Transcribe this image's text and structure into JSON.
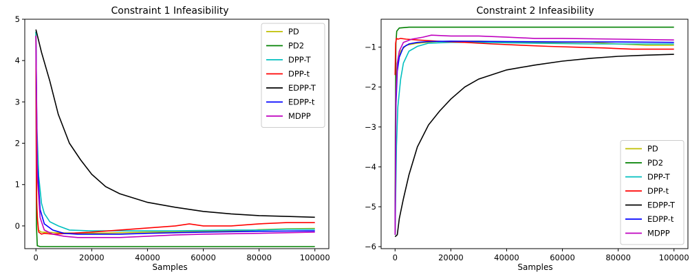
{
  "chart_data": [
    {
      "type": "line",
      "title": "Constraint 1 Infeasibility",
      "xlabel": "Samples",
      "ylabel": "",
      "xlim": [
        -4000,
        105000
      ],
      "ylim": [
        -0.55,
        5.0
      ],
      "xticks": [
        0,
        20000,
        40000,
        60000,
        80000,
        100000
      ],
      "xtick_labels": [
        "0",
        "20000",
        "40000",
        "60000",
        "80000",
        "100000"
      ],
      "yticks": [
        0,
        1,
        2,
        3,
        4,
        5
      ],
      "ytick_labels": [
        "0",
        "1",
        "2",
        "3",
        "4",
        "5"
      ],
      "legend_position": "top-right",
      "series": [
        {
          "name": "PD",
          "color": "#bfbf00",
          "x": [
            0,
            300,
            800,
            2000,
            10000,
            20000,
            40000,
            60000,
            75000,
            80000,
            90000,
            100000
          ],
          "y": [
            4.7,
            0.5,
            -0.1,
            -0.15,
            -0.17,
            -0.18,
            -0.15,
            -0.13,
            -0.12,
            -0.09,
            -0.07,
            -0.06
          ]
        },
        {
          "name": "PD2",
          "color": "#008000",
          "x": [
            0,
            200,
            500,
            1500,
            5000,
            20000,
            100000
          ],
          "y": [
            4.7,
            0.0,
            -0.48,
            -0.5,
            -0.5,
            -0.5,
            -0.5
          ]
        },
        {
          "name": "DPP-T",
          "color": "#00bfbf",
          "x": [
            0,
            300,
            1000,
            2000,
            3000,
            5000,
            8000,
            12000,
            20000,
            30000,
            50000,
            70000,
            80000,
            90000,
            100000
          ],
          "y": [
            4.7,
            2.5,
            1.2,
            0.55,
            0.3,
            0.1,
            0.0,
            -0.1,
            -0.12,
            -0.12,
            -0.12,
            -0.1,
            -0.1,
            -0.08,
            -0.08
          ]
        },
        {
          "name": "DPP-t",
          "color": "#ff0000",
          "x": [
            0,
            200,
            500,
            1000,
            2000,
            3000,
            6000,
            12000,
            20000,
            30000,
            40000,
            50000,
            55000,
            60000,
            70000,
            80000,
            90000,
            100000
          ],
          "y": [
            4.5,
            0.8,
            0.2,
            -0.15,
            -0.2,
            -0.18,
            -0.2,
            -0.18,
            -0.15,
            -0.1,
            -0.05,
            0.0,
            0.05,
            0.0,
            0.0,
            0.05,
            0.08,
            0.08
          ]
        },
        {
          "name": "EDPP-T",
          "color": "#000000",
          "x": [
            0,
            2000,
            5000,
            8000,
            12000,
            16000,
            20000,
            25000,
            30000,
            40000,
            50000,
            60000,
            70000,
            80000,
            90000,
            100000
          ],
          "y": [
            4.75,
            4.2,
            3.5,
            2.7,
            2.0,
            1.6,
            1.25,
            0.95,
            0.78,
            0.57,
            0.45,
            0.35,
            0.29,
            0.25,
            0.23,
            0.21
          ]
        },
        {
          "name": "EDPP-t",
          "color": "#0000ff",
          "x": [
            0,
            500,
            1500,
            3000,
            6000,
            10000,
            15000,
            20000,
            30000,
            40000,
            60000,
            80000,
            100000
          ],
          "y": [
            4.6,
            1.5,
            0.4,
            0.05,
            -0.1,
            -0.18,
            -0.2,
            -0.2,
            -0.2,
            -0.18,
            -0.15,
            -0.13,
            -0.12
          ]
        },
        {
          "name": "MDPP",
          "color": "#bf00bf",
          "x": [
            0,
            500,
            1500,
            3000,
            6000,
            10000,
            15000,
            20000,
            30000,
            40000,
            50000,
            60000,
            80000,
            100000
          ],
          "y": [
            4.6,
            1.2,
            0.2,
            -0.1,
            -0.2,
            -0.25,
            -0.28,
            -0.28,
            -0.28,
            -0.25,
            -0.22,
            -0.2,
            -0.18,
            -0.15
          ]
        }
      ]
    },
    {
      "type": "line",
      "title": "Constraint 2 Infeasibility",
      "xlabel": "Samples",
      "ylabel": "",
      "xlim": [
        -5000,
        105000
      ],
      "ylim": [
        -6.05,
        -0.3
      ],
      "xticks": [
        0,
        20000,
        40000,
        60000,
        80000,
        100000
      ],
      "xtick_labels": [
        "0",
        "20000",
        "40000",
        "60000",
        "80000",
        "100000"
      ],
      "yticks": [
        -6,
        -5,
        -4,
        -3,
        -2,
        -1
      ],
      "ytick_labels": [
        "−6",
        "−5",
        "−4",
        "−3",
        "−2",
        "−1"
      ],
      "legend_position": "lower-right",
      "series": [
        {
          "name": "PD",
          "color": "#bfbf00",
          "x": [
            0,
            300,
            800,
            2000,
            4000,
            8000,
            15000,
            30000,
            50000,
            70000,
            80000,
            90000,
            100000
          ],
          "y": [
            -5.7,
            -2.0,
            -1.4,
            -1.1,
            -0.95,
            -0.9,
            -0.86,
            -0.85,
            -0.88,
            -0.88,
            -0.92,
            -0.95,
            -0.95
          ]
        },
        {
          "name": "PD2",
          "color": "#008000",
          "x": [
            0,
            100,
            300,
            600,
            1500,
            5000,
            100000
          ],
          "y": [
            -5.7,
            -3.0,
            -0.9,
            -0.6,
            -0.52,
            -0.5,
            -0.5
          ]
        },
        {
          "name": "DPP-T",
          "color": "#00bfbf",
          "x": [
            0,
            500,
            1000,
            2000,
            3000,
            5000,
            8000,
            12000,
            20000,
            30000,
            50000,
            70000,
            100000
          ],
          "y": [
            -5.7,
            -3.5,
            -2.5,
            -1.8,
            -1.4,
            -1.1,
            -0.98,
            -0.9,
            -0.88,
            -0.88,
            -0.9,
            -0.92,
            -0.92
          ]
        },
        {
          "name": "DPP-t",
          "color": "#ff0000",
          "x": [
            0,
            200,
            500,
            1000,
            2000,
            4000,
            8000,
            15000,
            25000,
            35000,
            45000,
            55000,
            65000,
            75000,
            85000,
            100000
          ],
          "y": [
            -1.7,
            -0.9,
            -0.78,
            -0.8,
            -0.78,
            -0.8,
            -0.82,
            -0.85,
            -0.88,
            -0.92,
            -0.95,
            -0.98,
            -1.0,
            -1.02,
            -1.05,
            -1.05
          ]
        },
        {
          "name": "EDPP-T",
          "color": "#000000",
          "x": [
            0,
            800,
            1500,
            3000,
            5000,
            8000,
            12000,
            16000,
            20000,
            25000,
            30000,
            40000,
            50000,
            60000,
            70000,
            80000,
            90000,
            100000
          ],
          "y": [
            -5.75,
            -5.7,
            -5.3,
            -4.8,
            -4.2,
            -3.5,
            -2.95,
            -2.6,
            -2.3,
            -2.0,
            -1.8,
            -1.57,
            -1.45,
            -1.35,
            -1.28,
            -1.23,
            -1.2,
            -1.18
          ]
        },
        {
          "name": "EDPP-t",
          "color": "#0000ff",
          "x": [
            0,
            300,
            800,
            1500,
            3000,
            5000,
            8000,
            12000,
            20000,
            40000,
            60000,
            80000,
            100000
          ],
          "y": [
            -5.7,
            -2.5,
            -1.6,
            -1.25,
            -1.0,
            -0.92,
            -0.88,
            -0.86,
            -0.85,
            -0.86,
            -0.87,
            -0.87,
            -0.88
          ]
        },
        {
          "name": "MDPP",
          "color": "#bf00bf",
          "x": [
            0,
            300,
            800,
            1500,
            3000,
            6000,
            10000,
            13000,
            20000,
            30000,
            40000,
            50000,
            60000,
            80000,
            100000
          ],
          "y": [
            -5.7,
            -2.2,
            -1.4,
            -1.1,
            -0.88,
            -0.8,
            -0.75,
            -0.7,
            -0.72,
            -0.72,
            -0.75,
            -0.78,
            -0.78,
            -0.8,
            -0.82
          ]
        }
      ]
    }
  ]
}
